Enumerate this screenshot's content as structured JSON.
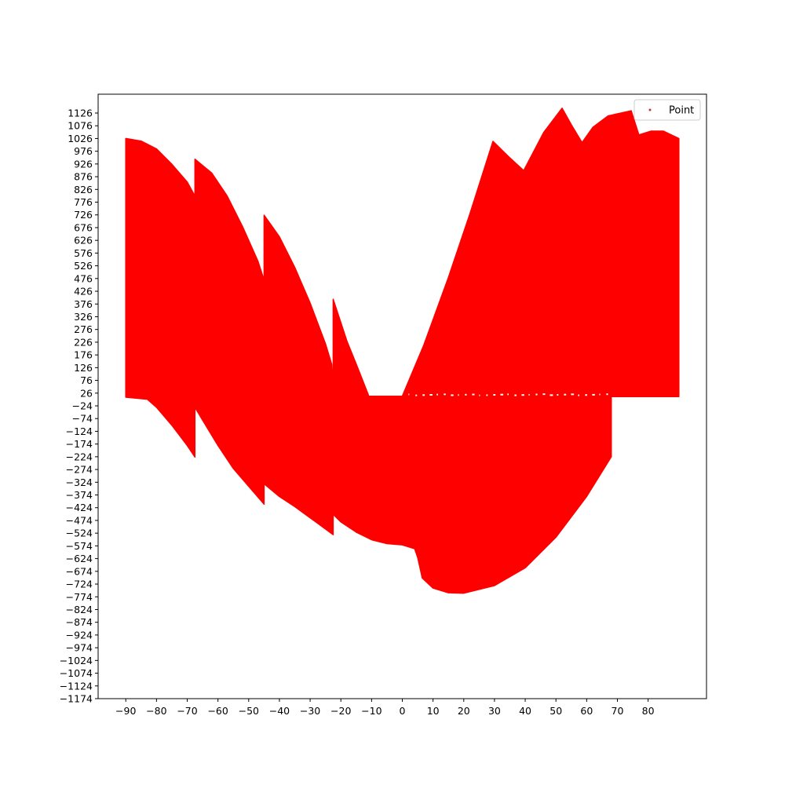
{
  "chart_data": {
    "type": "scatter",
    "title": "",
    "xlabel": "",
    "ylabel": "",
    "xlim": [
      -99,
      99
    ],
    "ylim": [
      -1174,
      1200
    ],
    "x_ticks": [
      -90,
      -80,
      -70,
      -60,
      -50,
      -40,
      -30,
      -20,
      -10,
      0,
      10,
      20,
      30,
      40,
      50,
      60,
      70,
      80
    ],
    "y_ticks": [
      -1174,
      -1124,
      -1074,
      -1024,
      -974,
      -924,
      -874,
      -824,
      -774,
      -724,
      -674,
      -624,
      -574,
      -524,
      -474,
      -424,
      -374,
      -324,
      -274,
      -224,
      -174,
      -124,
      -74,
      -24,
      26,
      76,
      126,
      176,
      226,
      276,
      326,
      376,
      426,
      476,
      526,
      576,
      626,
      676,
      726,
      776,
      826,
      876,
      926,
      976,
      1026,
      1076,
      1126
    ],
    "grid": false,
    "legend": {
      "placement": "top-right",
      "entries": [
        "Point"
      ]
    },
    "colors": {
      "marker": "#ff0000",
      "legend_marker": "#c0392b"
    },
    "series": [
      {
        "name": "Point",
        "upper_envelope": [
          [
            -90,
            1026
          ],
          [
            -85,
            1016
          ],
          [
            -80,
            985
          ],
          [
            -75,
            925
          ],
          [
            -70,
            855
          ],
          [
            -67.5,
            800
          ],
          [
            -67.5,
            945
          ],
          [
            -62,
            890
          ],
          [
            -57,
            800
          ],
          [
            -52,
            680
          ],
          [
            -47,
            545
          ],
          [
            -45,
            470
          ],
          [
            -45,
            725
          ],
          [
            -40,
            640
          ],
          [
            -35,
            520
          ],
          [
            -30,
            380
          ],
          [
            -25,
            220
          ],
          [
            -23,
            140
          ],
          [
            -22.5,
            28
          ],
          [
            -22.5,
            395
          ],
          [
            -18,
            230
          ],
          [
            -15,
            140
          ],
          [
            -11,
            18
          ],
          [
            -11,
            14
          ],
          [
            0,
            14
          ],
          [
            7,
            215
          ],
          [
            15,
            480
          ],
          [
            22,
            730
          ],
          [
            29.5,
            1015
          ],
          [
            35,
            950
          ],
          [
            39.5,
            900
          ],
          [
            46,
            1050
          ],
          [
            52,
            1145
          ],
          [
            55,
            1080
          ],
          [
            58.5,
            1010
          ],
          [
            62,
            1070
          ],
          [
            67,
            1115
          ],
          [
            74.5,
            1135
          ],
          [
            77,
            1040
          ],
          [
            81,
            1055
          ],
          [
            85,
            1055
          ],
          [
            90,
            1026
          ]
        ],
        "lower_envelope": [
          [
            90,
            12
          ],
          [
            68,
            12
          ],
          [
            68,
            -224
          ],
          [
            60,
            -380
          ],
          [
            50,
            -540
          ],
          [
            40,
            -660
          ],
          [
            30,
            -730
          ],
          [
            20,
            -760
          ],
          [
            15,
            -758
          ],
          [
            10,
            -740
          ],
          [
            6.5,
            -700
          ],
          [
            5,
            -620
          ],
          [
            4,
            -585
          ],
          [
            0,
            -570
          ],
          [
            -5,
            -565
          ],
          [
            -10,
            -550
          ],
          [
            -15,
            -520
          ],
          [
            -20,
            -480
          ],
          [
            -22.5,
            -450
          ],
          [
            -22.5,
            -530
          ],
          [
            -27,
            -490
          ],
          [
            -35,
            -420
          ],
          [
            -40,
            -380
          ],
          [
            -45,
            -330
          ],
          [
            -45,
            -410
          ],
          [
            -50,
            -340
          ],
          [
            -55,
            -270
          ],
          [
            -60,
            -180
          ],
          [
            -65,
            -80
          ],
          [
            -67.5,
            -30
          ],
          [
            -67.5,
            -225
          ],
          [
            -70,
            -180
          ],
          [
            -75,
            -100
          ],
          [
            -80,
            -30
          ],
          [
            -83,
            2
          ],
          [
            -90,
            10
          ]
        ]
      }
    ]
  }
}
